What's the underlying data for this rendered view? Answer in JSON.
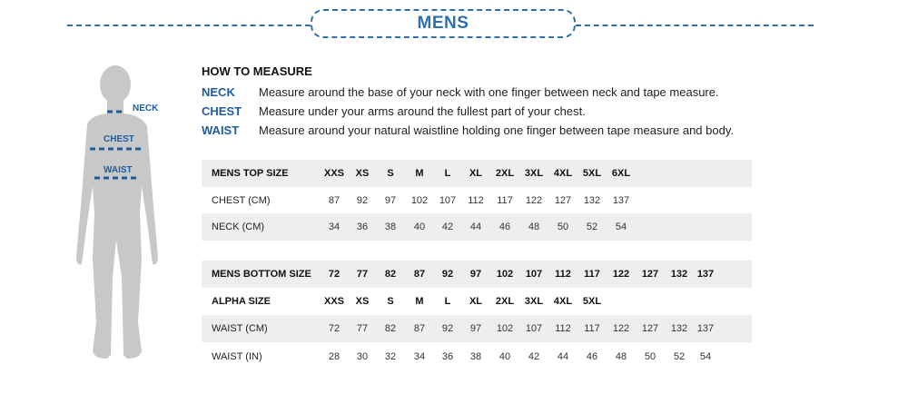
{
  "title": "MENS",
  "colors": {
    "accent": "#2f6fae",
    "label_blue": "#1f5c9e",
    "row_gray": "#eeeeee",
    "silhouette": "#c8c8c8"
  },
  "figure": {
    "neck_label": "NECK",
    "chest_label": "CHEST",
    "waist_label": "WAIST"
  },
  "how_to": {
    "heading": "HOW TO MEASURE",
    "items": [
      {
        "key": "NECK",
        "text": "Measure around the base of your neck with one finger between neck and tape measure."
      },
      {
        "key": "CHEST",
        "text": "Measure under your arms around the fullest part of your chest."
      },
      {
        "key": "WAIST",
        "text": "Measure around your natural waistline holding one finger between tape measure and body."
      }
    ]
  },
  "top_table": {
    "rows": [
      {
        "label": "MENS TOP SIZE",
        "header": true,
        "values": [
          "XXS",
          "XS",
          "S",
          "M",
          "L",
          "XL",
          "2XL",
          "3XL",
          "4XL",
          "5XL",
          "6XL"
        ]
      },
      {
        "label": "CHEST (CM)",
        "values": [
          "87",
          "92",
          "97",
          "102",
          "107",
          "112",
          "117",
          "122",
          "127",
          "132",
          "137"
        ]
      },
      {
        "label": "NECK (CM)",
        "values": [
          "34",
          "36",
          "38",
          "40",
          "42",
          "44",
          "46",
          "48",
          "50",
          "52",
          "54"
        ]
      }
    ]
  },
  "bottom_table": {
    "rows": [
      {
        "label": "MENS BOTTOM  SIZE",
        "header": true,
        "values": [
          "72",
          "77",
          "82",
          "87",
          "92",
          "97",
          "102",
          "107",
          "112",
          "117",
          "122",
          "127",
          "132",
          "137"
        ]
      },
      {
        "label": "ALPHA SIZE",
        "header": true,
        "values": [
          "XXS",
          "XS",
          "S",
          "M",
          "L",
          "XL",
          "2XL",
          "3XL",
          "4XL",
          "5XL"
        ]
      },
      {
        "label": "WAIST (CM)",
        "values": [
          "72",
          "77",
          "82",
          "87",
          "92",
          "97",
          "102",
          "107",
          "112",
          "117",
          "122",
          "127",
          "132",
          "137"
        ]
      },
      {
        "label": "WAIST (IN)",
        "values": [
          "28",
          "30",
          "32",
          "34",
          "36",
          "38",
          "40",
          "42",
          "44",
          "46",
          "48",
          "50",
          "52",
          "54"
        ]
      }
    ]
  }
}
